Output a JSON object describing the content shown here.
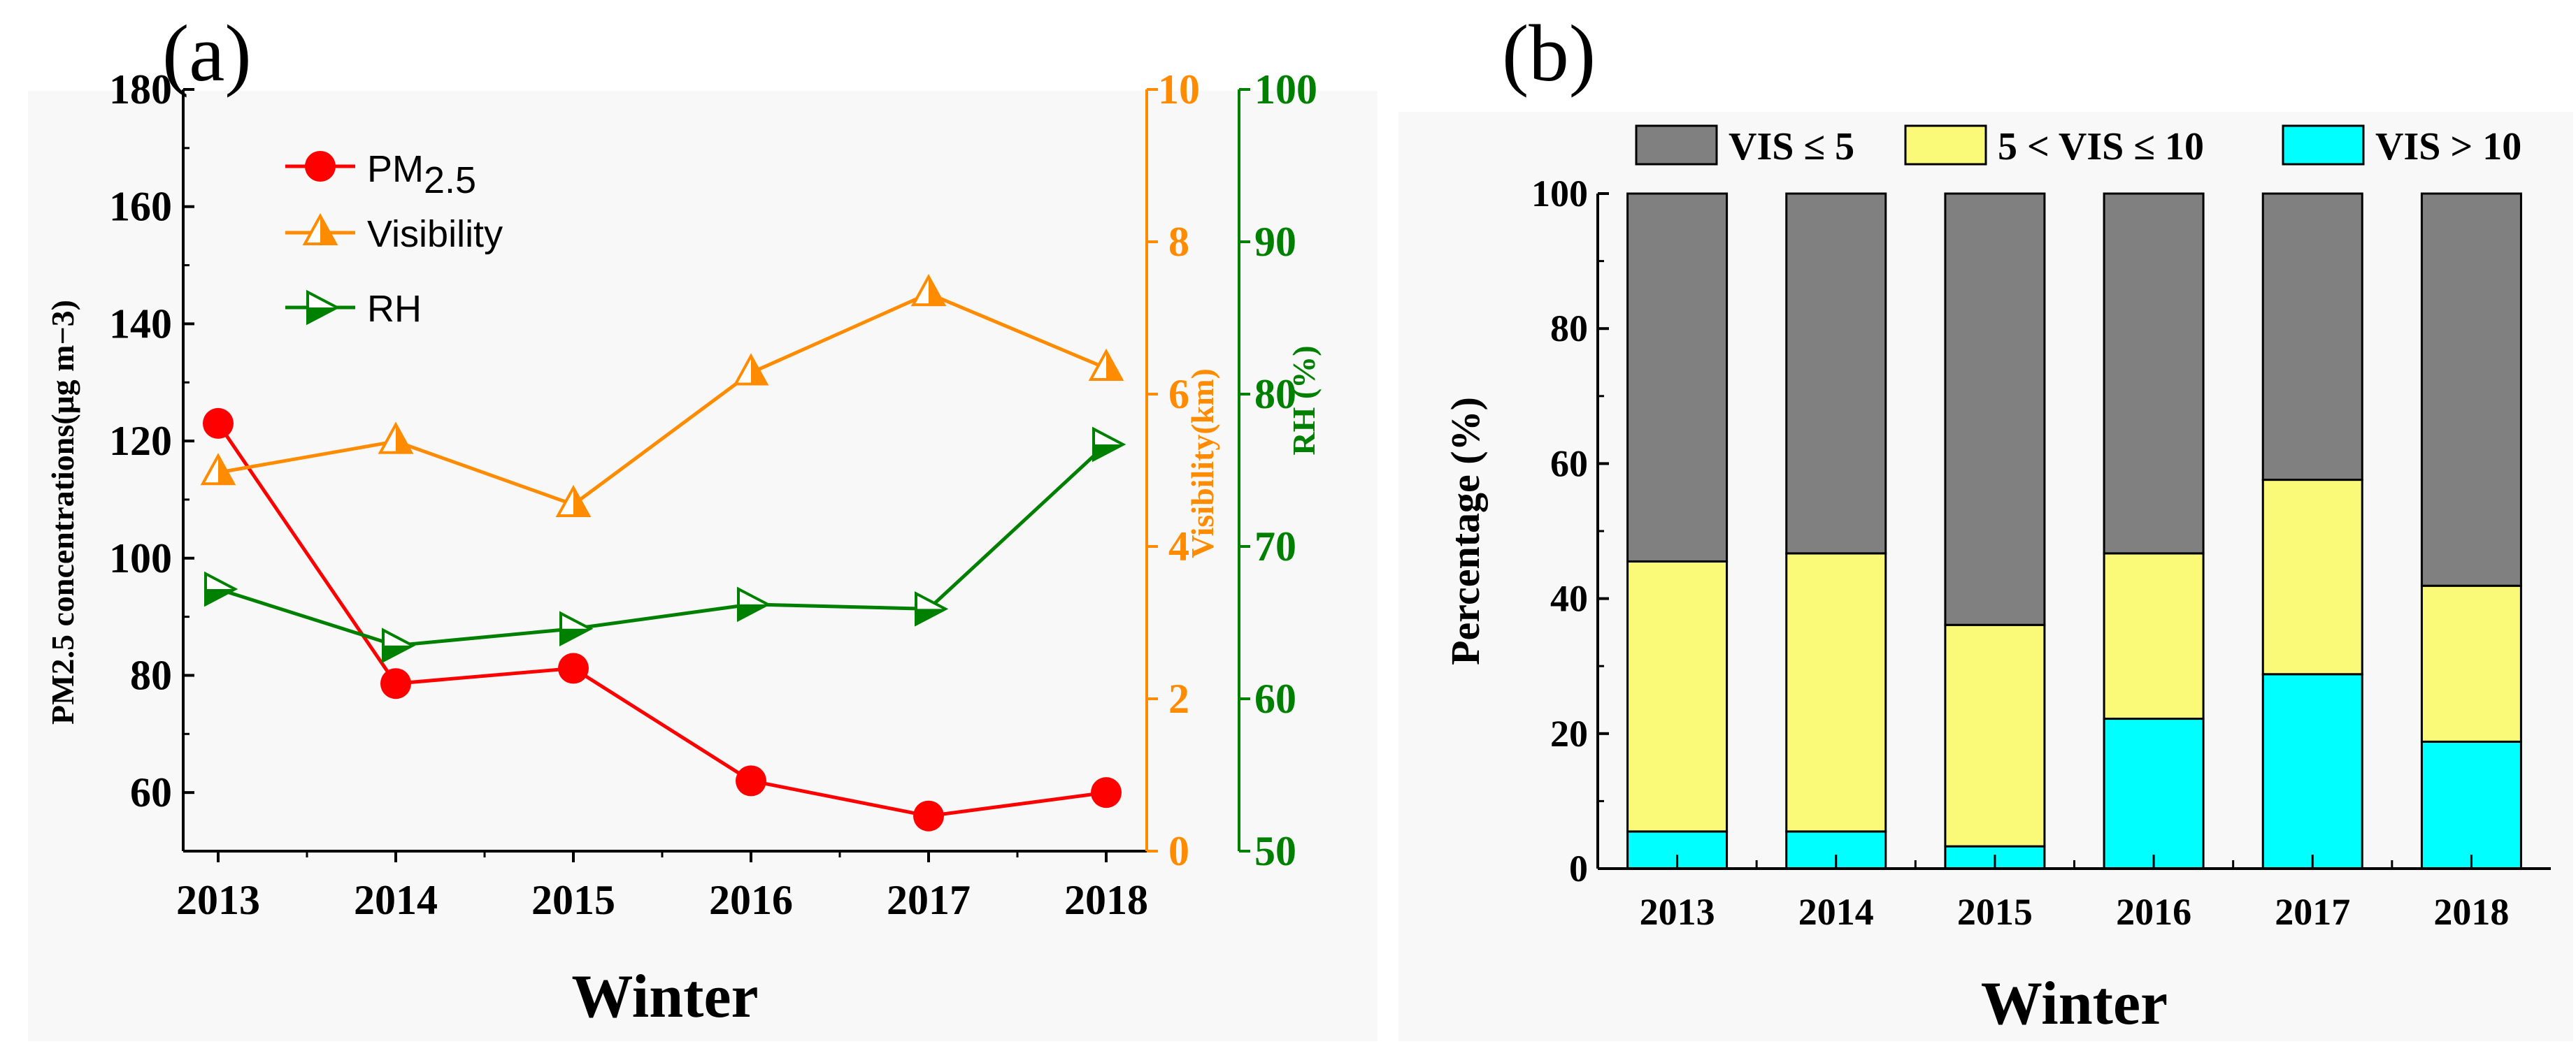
{
  "chart_data": [
    {
      "type": "line",
      "panel_label": "(a)",
      "xlabel": "Winter",
      "categories": [
        "2013",
        "2014",
        "2015",
        "2016",
        "2017",
        "2018"
      ],
      "axes": {
        "left": {
          "label": "PM2.5 concentrations(μg m−3)",
          "ylim": [
            50,
            180
          ],
          "ticks": [
            60,
            80,
            100,
            120,
            140,
            160,
            180
          ],
          "color": "#000000"
        },
        "right1": {
          "label": "Visibility(km)",
          "ylim": [
            0,
            10
          ],
          "ticks": [
            0,
            2,
            4,
            6,
            8,
            10
          ],
          "color": "#FF8C00"
        },
        "right2": {
          "label": "RH (%)",
          "ylim": [
            50,
            100
          ],
          "ticks": [
            50,
            60,
            70,
            80,
            90,
            100
          ],
          "color": "#008000"
        }
      },
      "series": [
        {
          "name": "PM2.5",
          "axis": "left",
          "color": "#FF0000",
          "marker": "circle",
          "values": [
            123,
            78.6,
            81.2,
            62,
            56,
            60
          ]
        },
        {
          "name": "Visibility",
          "axis": "right1",
          "color": "#FF8C00",
          "marker": "triangle-up-half",
          "values": [
            4.97,
            5.38,
            4.55,
            6.28,
            7.32,
            6.34
          ]
        },
        {
          "name": "RH",
          "axis": "right2",
          "color": "#008000",
          "marker": "triangle-right-half",
          "values": [
            67.2,
            63.5,
            64.6,
            66.2,
            65.9,
            76.7
          ]
        }
      ],
      "legend": {
        "placement": "top-left",
        "labels": {
          "pm_main": "PM",
          "pm_sub": "2.5",
          "vis": "Visibility",
          "rh": "RH"
        }
      }
    },
    {
      "type": "bar",
      "stacked": true,
      "panel_label": "(b)",
      "xlabel": "Winter",
      "ylabel": "Percentage (%)",
      "ylim": [
        0,
        100
      ],
      "yticks": [
        0,
        20,
        40,
        60,
        80,
        100
      ],
      "categories": [
        "2013",
        "2014",
        "2015",
        "2016",
        "2017",
        "2018"
      ],
      "series": [
        {
          "name": "VIS > 10",
          "color": "#00FFFF",
          "values": [
            5.5,
            5.5,
            3.3,
            22.2,
            28.8,
            18.8
          ]
        },
        {
          "name": "5 < VIS ≤ 10",
          "color": "#FAFA78",
          "values": [
            40.0,
            41.2,
            32.8,
            24.5,
            28.8,
            23.1
          ]
        },
        {
          "name": "VIS ≤ 5",
          "color": "#808080",
          "values": [
            54.5,
            53.3,
            63.9,
            53.3,
            42.4,
            58.1
          ]
        }
      ],
      "legend": {
        "placement": "top",
        "order": [
          "VIS ≤ 5",
          "5 < VIS ≤ 10",
          "VIS > 10"
        ]
      }
    }
  ]
}
